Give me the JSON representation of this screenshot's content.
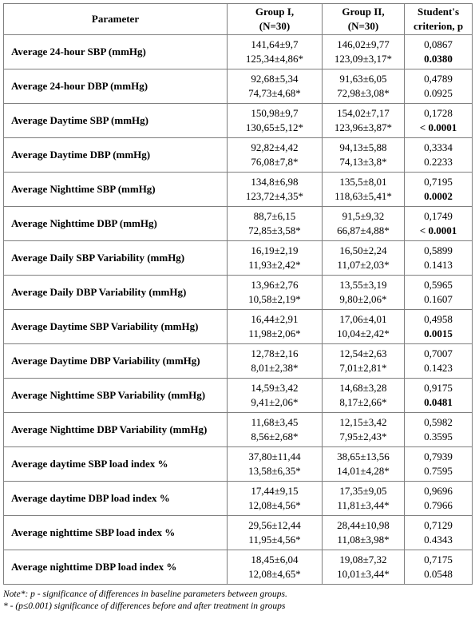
{
  "table": {
    "headers": {
      "parameter": "Parameter",
      "group1_line1": "Group I,",
      "group1_line2": "(N=30)",
      "group2_line1": "Group II,",
      "group2_line2": "(N=30)",
      "p_line1": "Student's",
      "p_line2": "criterion, p"
    },
    "rows": [
      {
        "parameter": "Average 24-hour SBP (mmHg)",
        "g1": [
          "141,64±9,7",
          "125,34±4,86*"
        ],
        "g2": [
          "146,02±9,77",
          "123,09±3,17*"
        ],
        "p": [
          "0,0867",
          "0.0380"
        ],
        "p_bold": [
          false,
          true
        ]
      },
      {
        "parameter": "Average 24-hour DBP (mmHg)",
        "g1": [
          "92,68±5,34",
          "74,73±4,68*"
        ],
        "g2": [
          "91,63±6,05",
          "72,98±3,08*"
        ],
        "p": [
          "0,4789",
          "0.0925"
        ],
        "p_bold": [
          false,
          false
        ]
      },
      {
        "parameter": "Average Daytime SBP (mmHg)",
        "g1": [
          "150,98±9,7",
          "130,65±5,12*"
        ],
        "g2": [
          "154,02±7,17",
          "123,96±3,87*"
        ],
        "p": [
          "0,1728",
          "< 0.0001"
        ],
        "p_bold": [
          false,
          true
        ]
      },
      {
        "parameter": "Average Daytime DBP (mmHg)",
        "g1": [
          "92,82±4,42",
          "76,08±7,8*"
        ],
        "g2": [
          "94,13±5,88",
          "74,13±3,8*"
        ],
        "p": [
          "0,3334",
          "0.2233"
        ],
        "p_bold": [
          false,
          false
        ]
      },
      {
        "parameter": "Average Nighttime SBP (mmHg)",
        "g1": [
          "134,8±6,98",
          "123,72±4,35*"
        ],
        "g2": [
          "135,5±8,01",
          "118,63±5,41*"
        ],
        "p": [
          "0,7195",
          "0.0002"
        ],
        "p_bold": [
          false,
          true
        ]
      },
      {
        "parameter": "Average Nighttime DBP (mmHg)",
        "g1": [
          "88,7±6,15",
          "72,85±3,58*"
        ],
        "g2": [
          "91,5±9,32",
          "66,87±4,88*"
        ],
        "p": [
          "0,1749",
          "< 0.0001"
        ],
        "p_bold": [
          false,
          true
        ]
      },
      {
        "parameter": "Average Daily SBP Variability (mmHg)",
        "g1": [
          "16,19±2,19",
          "11,93±2,42*"
        ],
        "g2": [
          "16,50±2,24",
          "11,07±2,03*"
        ],
        "p": [
          "0,5899",
          "0.1413"
        ],
        "p_bold": [
          false,
          false
        ]
      },
      {
        "parameter": "Average Daily DBP Variability (mmHg)",
        "g1": [
          "13,96±2,76",
          "10,58±2,19*"
        ],
        "g2": [
          "13,55±3,19",
          "9,80±2,06*"
        ],
        "p": [
          "0,5965",
          "0.1607"
        ],
        "p_bold": [
          false,
          false
        ]
      },
      {
        "parameter": "Average Daytime SBP Variability (mmHg)",
        "g1": [
          "16,44±2,91",
          "11,98±2,06*"
        ],
        "g2": [
          "17,06±4,01",
          "10,04±2,42*"
        ],
        "p": [
          "0,4958",
          "0.0015"
        ],
        "p_bold": [
          false,
          true
        ]
      },
      {
        "parameter": "Average Daytime DBP Variability (mmHg)",
        "g1": [
          "12,78±2,16",
          "8,01±2,38*"
        ],
        "g2": [
          "12,54±2,63",
          "7,01±2,81*"
        ],
        "p": [
          "0,7007",
          "0.1423"
        ],
        "p_bold": [
          false,
          false
        ]
      },
      {
        "parameter": "Average Nighttime SBP Variability (mmHg)",
        "g1": [
          "14,59±3,42",
          "9,41±2,06*"
        ],
        "g2": [
          "14,68±3,28",
          "8,17±2,66*"
        ],
        "p": [
          "0,9175",
          "0.0481"
        ],
        "p_bold": [
          false,
          true
        ]
      },
      {
        "parameter": "Average Nighttime DBP Variability (mmHg)",
        "g1": [
          "11,68±3,45",
          "8,56±2,68*"
        ],
        "g2": [
          "12,15±3,42",
          "7,95±2,43*"
        ],
        "p": [
          "0,5982",
          "0.3595"
        ],
        "p_bold": [
          false,
          false
        ]
      },
      {
        "parameter": "Average daytime SBP load index %",
        "g1": [
          "37,80±11,44",
          "13,58±6,35*"
        ],
        "g2": [
          "38,65±13,56",
          "14,01±4,28*"
        ],
        "p": [
          "0,7939",
          "0.7595"
        ],
        "p_bold": [
          false,
          false
        ]
      },
      {
        "parameter": "Average daytime DBP load index %",
        "g1": [
          "17,44±9,15",
          "12,08±4,56*"
        ],
        "g2": [
          "17,35±9,05",
          "11,81±3,44*"
        ],
        "p": [
          "0,9696",
          "0.7966"
        ],
        "p_bold": [
          false,
          false
        ]
      },
      {
        "parameter": "Average nighttime SBP load index %",
        "g1": [
          "29,56±12,44",
          "11,95±4,56*"
        ],
        "g2": [
          "28,44±10,98",
          "11,08±3,98*"
        ],
        "p": [
          "0,7129",
          "0.4343"
        ],
        "p_bold": [
          false,
          false
        ]
      },
      {
        "parameter": "Average nighttime DBP load index %",
        "g1": [
          "18,45±6,04",
          "12,08±4,65*"
        ],
        "g2": [
          "19,08±7,32",
          "10,01±3,44*"
        ],
        "p": [
          "0,7175",
          "0.0548"
        ],
        "p_bold": [
          false,
          false
        ]
      }
    ]
  },
  "notes": {
    "line1": "Note*: p - significance of differences in baseline parameters between groups.",
    "line2": "* - (p≤0.001) significance of differences before and after treatment in groups"
  }
}
